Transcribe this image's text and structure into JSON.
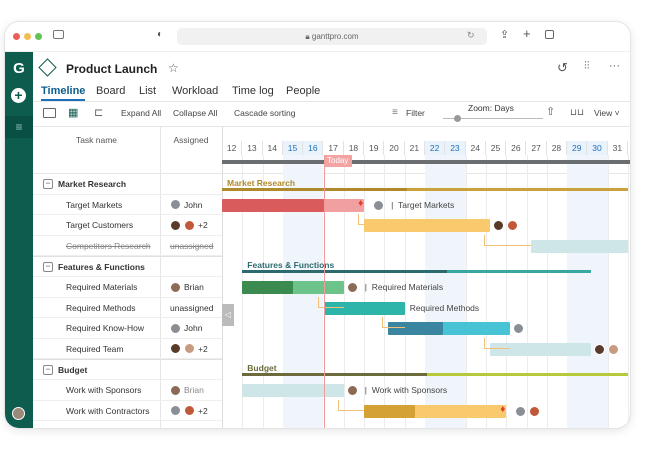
{
  "browser": {
    "url": "ganttpro.com"
  },
  "project": {
    "title": "Product Launch"
  },
  "tabs": [
    {
      "label": "Timeline",
      "active": true
    },
    {
      "label": "Board"
    },
    {
      "label": "List"
    },
    {
      "label": "Workload"
    },
    {
      "label": "Time log"
    },
    {
      "label": "People"
    }
  ],
  "toolbar": {
    "expand": "Expand All",
    "collapse": "Collapse All",
    "cascade": "Cascade sorting",
    "filter": "Filter",
    "zoom": "Zoom: Days",
    "view": "View"
  },
  "columns": {
    "task": "Task name",
    "assigned": "Assigned"
  },
  "today_label": "Today",
  "today": 17,
  "days": [
    12,
    13,
    14,
    15,
    16,
    17,
    18,
    19,
    20,
    21,
    22,
    23,
    24,
    25,
    26,
    27,
    28,
    29,
    30,
    31
  ],
  "weekend_days": [
    15,
    16,
    22,
    23,
    29,
    30
  ],
  "rows": [
    {
      "name": "Market Research",
      "group": true,
      "color": "#c9a23b",
      "dark": "#b08a2a",
      "start": 12,
      "end": 32,
      "progress_to": 21.1
    },
    {
      "name": "Target Markets",
      "assigned": "John",
      "avatars": [
        "#8a8f96"
      ],
      "color": "#f0a0a0",
      "dark": "#d95b5b",
      "start": 12,
      "end": 19,
      "progress_to": 17,
      "fire": true,
      "bar_label": "Target Markets"
    },
    {
      "name": "Target Customers",
      "assigned": "+2",
      "avatars": [
        "#5a3b2a",
        "#c0583a"
      ],
      "color": "#f9c96d",
      "start": 19,
      "end": 25.2
    },
    {
      "name": "Competitors Research",
      "assigned": "unassigned",
      "strike": true,
      "color": "#cfe6e8",
      "start": 27.2,
      "end": 32
    },
    {
      "name": "Features & Functions",
      "group": true,
      "color": "#3aa6a0",
      "dark": "#2d6a6e",
      "start": 13,
      "end": 30.2,
      "progress_to": 23.1
    },
    {
      "name": "Required Materials",
      "assigned": "Brian",
      "avatars": [
        "#8b6b55"
      ],
      "color": "#6cc48a",
      "dark": "#3b8a50",
      "start": 13,
      "end": 18,
      "progress_to": 15.5,
      "bar_label": "Required Materials"
    },
    {
      "name": "Required Methods",
      "assigned": "unassigned",
      "color": "#2cb5a8",
      "start": 17,
      "end": 21,
      "bar_label": "Required Methods"
    },
    {
      "name": "Required Know-How",
      "assigned": "John",
      "avatars": [
        "#8a8f96"
      ],
      "color": "#48c3d6",
      "dark": "#3a86a0",
      "start": 20.2,
      "end": 26.2,
      "progress_to": 22.9
    },
    {
      "name": "Required Team",
      "assigned": "+2",
      "avatars": [
        "#5a3b2a",
        "#c89a80"
      ],
      "color": "#cfe6e8",
      "start": 25.2,
      "end": 30.2
    },
    {
      "name": "Budget",
      "group": true,
      "color": "#b6c93b",
      "dark": "#6b6b3b",
      "start": 13,
      "end": 32,
      "progress_to": 22.1
    },
    {
      "name": "Work with Sponsors",
      "assigned": "Brian",
      "avatars": [
        "#8b6b55"
      ],
      "color": "#cfe6e8",
      "start": 13,
      "end": 18,
      "bar_label": "Work with Sponsors",
      "faded": true
    },
    {
      "name": "Work with Contractors",
      "assigned": "+2",
      "avatars": [
        "#8a8f96",
        "#c0583a"
      ],
      "color": "#f9c96d",
      "dark": "#d3a135",
      "start": 19,
      "end": 26,
      "progress_to": 21.5,
      "fire": true
    }
  ]
}
